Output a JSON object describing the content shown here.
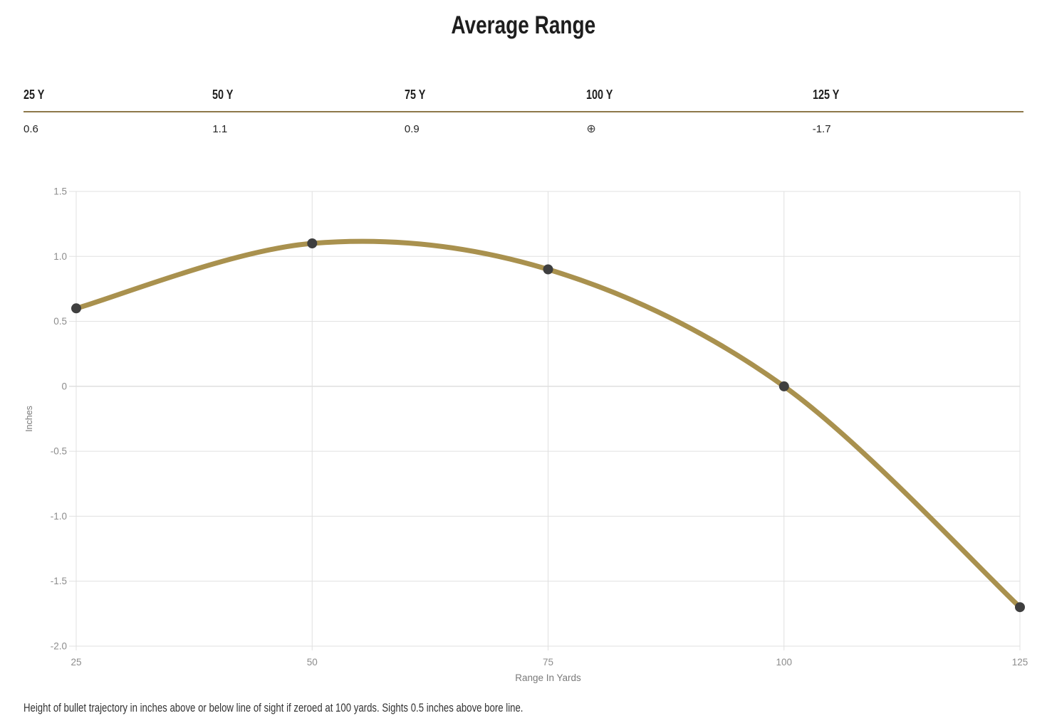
{
  "header": {
    "title": "Average Range"
  },
  "summary": {
    "divider_color": "#8d774a",
    "columns": [
      {
        "label": "25 Y",
        "value": "0.6"
      },
      {
        "label": "50 Y",
        "value": "1.1"
      },
      {
        "label": "75 Y",
        "value": "0.9"
      },
      {
        "label": "100 Y",
        "value": "⊕",
        "icon": "zero-target-icon"
      },
      {
        "label": "125 Y",
        "value": "-1.7"
      }
    ]
  },
  "chart_data": {
    "type": "line",
    "title": "Average Range",
    "x": [
      25,
      50,
      75,
      100,
      125
    ],
    "values": [
      0.6,
      1.1,
      0.9,
      0,
      -1.7
    ],
    "xlabel": "Range In Yards",
    "ylabel": "Inches",
    "xlim": [
      25,
      125
    ],
    "ylim": [
      -2.0,
      1.5
    ],
    "xtick_labels": [
      "25",
      "50",
      "75",
      "100",
      "125"
    ],
    "ytick_values": [
      1.5,
      1.0,
      0.5,
      0,
      -0.5,
      -1.0,
      -1.5,
      -2.0
    ],
    "ytick_labels": [
      "1.5",
      "1.0",
      "0.5",
      "0",
      "-0.5",
      "-1.0",
      "-1.5",
      "-2.0"
    ],
    "grid": true,
    "legend": false,
    "line_color": "#a9914e",
    "point_color": "#3f3f3f",
    "grid_color": "#e0e0e0",
    "zero_line_color": "#cfcfcf",
    "tick_label_color": "#8c8c8c",
    "axis_label_color": "#7a7a7a"
  },
  "footnote": {
    "text": "Height of bullet trajectory in inches above or below line of sight if zeroed at 100 yards. Sights 0.5 inches above bore line."
  }
}
